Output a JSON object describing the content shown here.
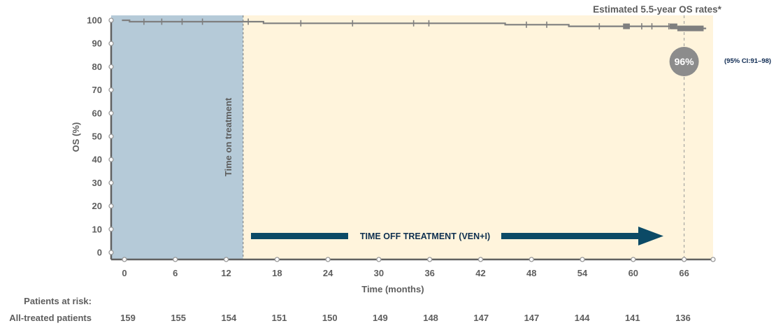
{
  "chart_data": {
    "type": "line",
    "subtype": "kaplan-meier",
    "title": "Estimated 5.5-year OS rates*",
    "xlabel": "Time (months)",
    "ylabel": "OS (%)",
    "xlim": [
      -1.5,
      69.5
    ],
    "ylim": [
      -3,
      103
    ],
    "x_ticks": [
      0,
      6,
      12,
      18,
      24,
      30,
      36,
      42,
      48,
      54,
      60,
      66
    ],
    "y_ticks": [
      0,
      10,
      20,
      30,
      40,
      50,
      60,
      70,
      80,
      90,
      100
    ],
    "grid": false,
    "regions": [
      {
        "label": "Time on treatment",
        "x_start": -1.5,
        "x_end": 14,
        "color": "#b5cad8"
      },
      {
        "label": "TIME OFF TREATMENT (VEN+I)",
        "x_start": 14,
        "x_end": 69.5,
        "color": "#fff4dc"
      }
    ],
    "series": [
      {
        "name": "All-treated patients",
        "color": "#7f7f7f",
        "step_points": [
          [
            -0.3,
            100
          ],
          [
            0.6,
            100
          ],
          [
            0.6,
            99.4
          ],
          [
            14.2,
            99.4
          ],
          [
            14.2,
            99.4
          ],
          [
            16.4,
            99.4
          ],
          [
            16.4,
            98.7
          ],
          [
            44.9,
            98.7
          ],
          [
            44.9,
            98.1
          ],
          [
            52.4,
            98.1
          ],
          [
            52.4,
            97.4
          ],
          [
            64.5,
            97.4
          ],
          [
            64.5,
            96.5
          ],
          [
            68.6,
            96.5
          ]
        ],
        "censor_marks": [
          2.3,
          4.4,
          6.8,
          9.2,
          14.6,
          20.8,
          26.9,
          34.1,
          35.9,
          47.4,
          49.8,
          56.0,
          61.0,
          62.2,
          64.2
        ],
        "censor_clusters": [
          [
            58.8,
            59.6
          ],
          [
            64.3,
            65.2
          ],
          [
            65.2,
            68.3
          ]
        ]
      }
    ],
    "annotations": [
      {
        "x": 66,
        "y": 83,
        "text": "96%",
        "type": "circle-badge"
      },
      {
        "x": 66,
        "text": "(95% CI:91–98)"
      }
    ],
    "risk_table": {
      "title": "Patients at risk:",
      "row_label": "All-treated patients",
      "times": [
        0,
        6,
        12,
        18,
        24,
        30,
        36,
        42,
        48,
        54,
        60,
        66
      ],
      "values": [
        159,
        155,
        154,
        151,
        150,
        149,
        148,
        147,
        147,
        144,
        141,
        136
      ]
    }
  },
  "labels": {
    "title": "Estimated 5.5-year OS rates*",
    "estimate": "96%",
    "ci": "(95% CI:91–98)",
    "on_treatment": "Time on treatment",
    "off_treatment": "TIME OFF TREATMENT (VEN+I)",
    "xlabel": "Time (months)",
    "ylabel": "OS (%)",
    "risk_title": "Patients at risk:",
    "risk_row_label": "All-treated patients"
  },
  "colors": {
    "on_region": "#b5cad8",
    "off_region": "#fff4dc",
    "curve": "#7f7f7f",
    "arrow": "#0b4a66",
    "badge": "#8c8c8c",
    "axis": "#616161"
  }
}
